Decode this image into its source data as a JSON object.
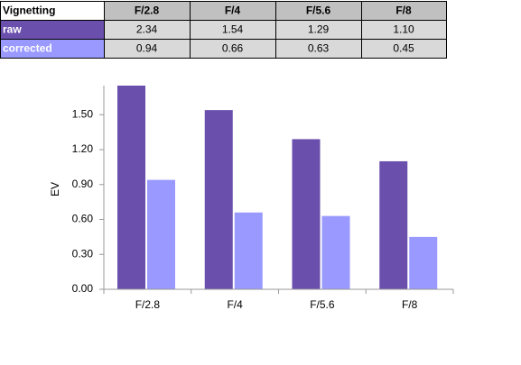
{
  "chart_data": {
    "type": "bar",
    "table_title": "Vignetting",
    "y_label": "EV",
    "categories": [
      "F/2.8",
      "F/4",
      "F/5.6",
      "F/8"
    ],
    "series": [
      {
        "name": "raw",
        "color": "#6a4fad",
        "values": [
          2.34,
          1.54,
          1.29,
          1.1
        ],
        "value_labels": [
          "2.34",
          "1.54",
          "1.29",
          "1.10"
        ]
      },
      {
        "name": "corrected",
        "color": "#9999ff",
        "values": [
          0.94,
          0.66,
          0.63,
          0.45
        ],
        "value_labels": [
          "0.94",
          "0.66",
          "0.63",
          "0.45"
        ]
      }
    ],
    "ylim": [
      0,
      1.75
    ],
    "yticks": [
      {
        "value": 0,
        "label": "0.00"
      },
      {
        "value": 0.3,
        "label": "0.30"
      },
      {
        "value": 0.6,
        "label": "0.60"
      },
      {
        "value": 0.9,
        "label": "0.90"
      },
      {
        "value": 1.2,
        "label": "1.20"
      },
      {
        "value": 1.5,
        "label": "1.50"
      }
    ],
    "grid": false
  }
}
